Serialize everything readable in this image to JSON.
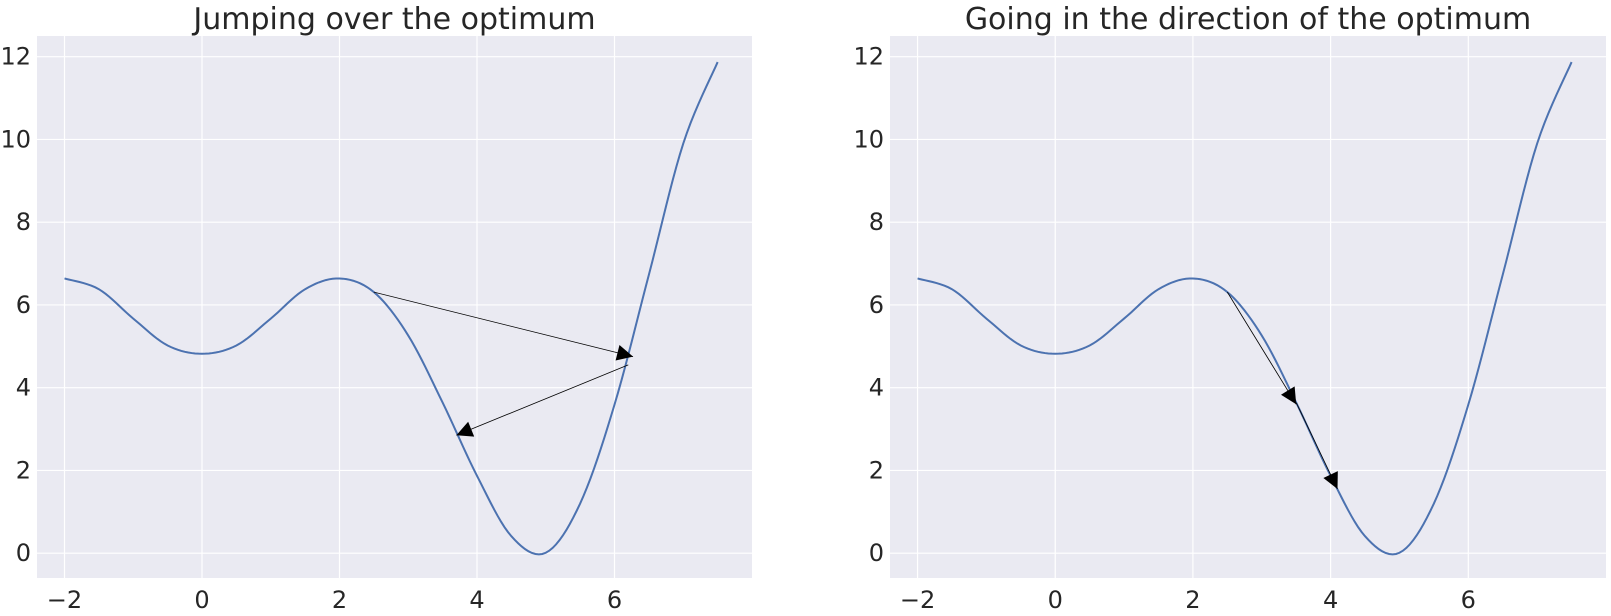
{
  "chart_data": [
    {
      "type": "line",
      "title": "Jumping over the optimum",
      "xlabel": "",
      "ylabel": "",
      "xlim": [
        -2.4,
        8.0
      ],
      "ylim": [
        -0.6,
        12.5
      ],
      "xticks": [
        -2,
        0,
        2,
        4,
        6
      ],
      "xtick_labels": [
        "−2",
        "0",
        "2",
        "4",
        "6"
      ],
      "yticks": [
        0,
        2,
        4,
        6,
        8,
        10,
        12
      ],
      "ytick_labels": [
        "0",
        "2",
        "4",
        "6",
        "8",
        "10",
        "12"
      ],
      "grid": true,
      "series": [
        {
          "x": [
            -2.0,
            -1.5,
            -1.0,
            -0.5,
            0.0,
            0.5,
            1.0,
            1.5,
            2.0,
            2.5,
            3.0,
            3.5,
            4.0,
            4.5,
            5.0,
            5.5,
            6.0,
            6.5,
            7.0,
            7.5
          ],
          "y": [
            6.64,
            6.38,
            5.67,
            5.02,
            4.82,
            5.02,
            5.67,
            6.38,
            6.64,
            6.31,
            5.26,
            3.64,
            1.87,
            0.41,
            0.01,
            1.2,
            3.59,
            6.73,
            9.9,
            11.87
          ]
        }
      ],
      "arrows": [
        {
          "from": [
            2.5,
            6.31
          ],
          "to": [
            6.27,
            4.75
          ]
        },
        {
          "from": [
            6.2,
            4.55
          ],
          "to": [
            3.7,
            2.85
          ]
        }
      ]
    },
    {
      "type": "line",
      "title": "Going in the direction of the optimum",
      "xlabel": "",
      "ylabel": "",
      "xlim": [
        -2.4,
        8.0
      ],
      "ylim": [
        -0.6,
        12.5
      ],
      "xticks": [
        -2,
        0,
        2,
        4,
        6
      ],
      "xtick_labels": [
        "−2",
        "0",
        "2",
        "4",
        "6"
      ],
      "yticks": [
        0,
        2,
        4,
        6,
        8,
        10,
        12
      ],
      "ytick_labels": [
        "0",
        "2",
        "4",
        "6",
        "8",
        "10",
        "12"
      ],
      "grid": true,
      "series": [
        {
          "x": [
            -2.0,
            -1.5,
            -1.0,
            -0.5,
            0.0,
            0.5,
            1.0,
            1.5,
            2.0,
            2.5,
            3.0,
            3.5,
            4.0,
            4.5,
            5.0,
            5.5,
            6.0,
            6.5,
            7.0,
            7.5
          ],
          "y": [
            6.64,
            6.38,
            5.67,
            5.02,
            4.82,
            5.02,
            5.67,
            6.38,
            6.64,
            6.31,
            5.26,
            3.64,
            1.87,
            0.41,
            0.01,
            1.2,
            3.59,
            6.73,
            9.9,
            11.87
          ]
        }
      ],
      "arrows": [
        {
          "from": [
            2.5,
            6.31
          ],
          "to": [
            3.5,
            3.6
          ]
        },
        {
          "from": [
            3.5,
            3.64
          ],
          "to": [
            4.1,
            1.55
          ]
        }
      ]
    }
  ],
  "colors": {
    "plot_background": "#eaeaf2",
    "grid": "#ffffff",
    "line": "#4c72b0",
    "arrow": "#000000",
    "text": "#262626"
  }
}
